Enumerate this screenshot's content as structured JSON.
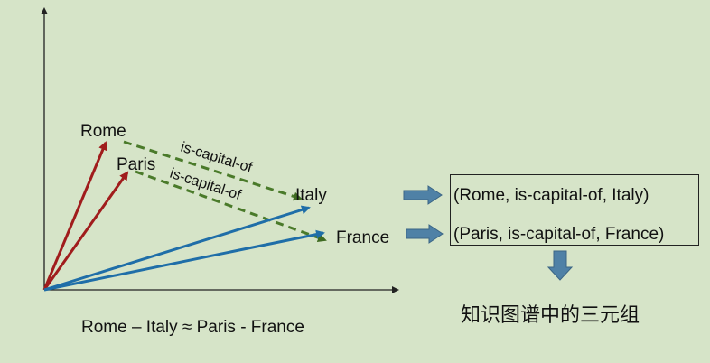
{
  "diagram": {
    "word_labels": {
      "rome": "Rome",
      "paris": "Paris",
      "italy": "Italy",
      "france": "France"
    },
    "relation_labels": {
      "upper": "is-capital-of",
      "lower": "is-capital-of"
    },
    "triples": [
      "(Rome, is-capital-of, Italy)",
      "(Paris, is-capital-of, France)"
    ],
    "equation": "Rome – Italy ≈ Paris - France",
    "conclusion": "知识图谱中的三元组",
    "colors": {
      "capital_vectors": "#a01c1c",
      "country_vectors": "#1f6ea8",
      "relation_lines": "#4a7a2a",
      "flow_arrows": "#4f81a6",
      "background": "#d6e4c8"
    }
  }
}
